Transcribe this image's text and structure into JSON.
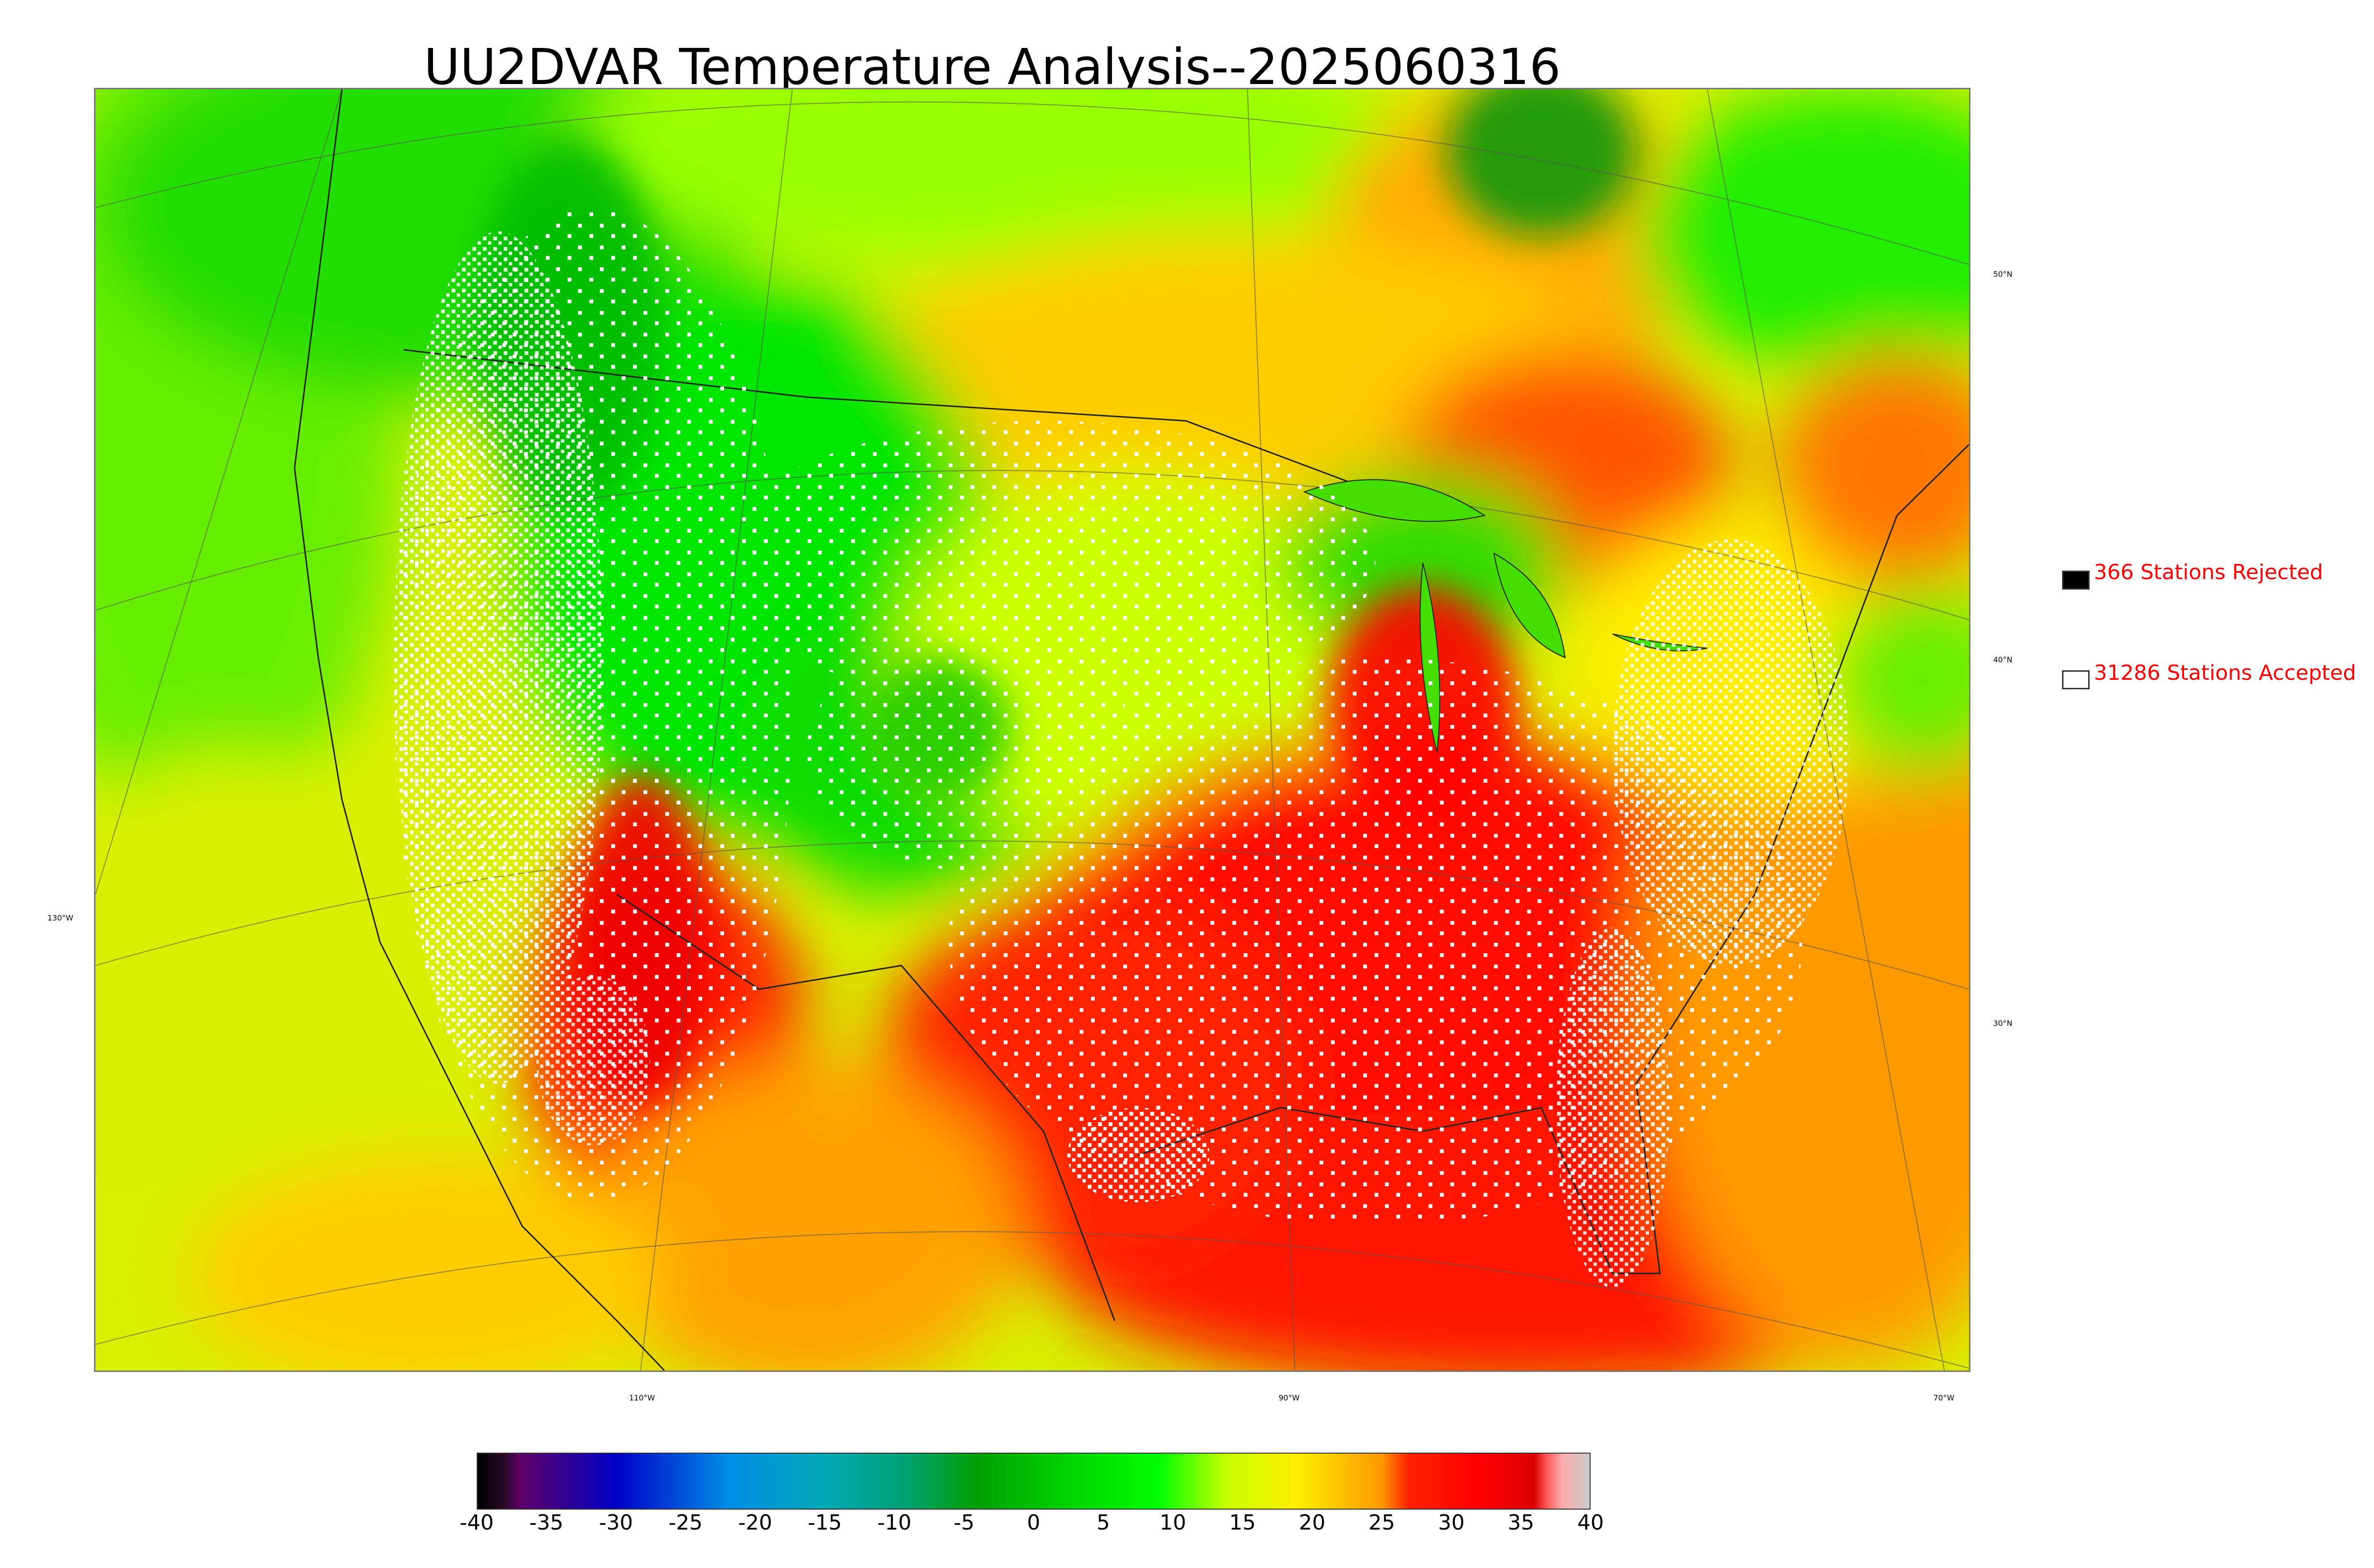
{
  "title": "UU2DVAR Temperature Analysis--2025060316",
  "map": {
    "grid_labels": {
      "lat_50": "50°N",
      "lat_40": "40°N",
      "lat_30": "30°N",
      "lon_130": "130°W",
      "lon_110": "110°W",
      "lon_90": "90°W",
      "lon_70": "70°W"
    }
  },
  "legend": {
    "rejected": {
      "label": "366 Stations Rejected",
      "color": "#000000"
    },
    "accepted": {
      "label": "31286 Stations Accepted",
      "color": "#ffffff"
    }
  },
  "colorbar": {
    "ticks": [
      "-40",
      "-35",
      "-30",
      "-25",
      "-20",
      "-15",
      "-10",
      "-5",
      "0",
      "5",
      "10",
      "15",
      "20",
      "25",
      "30",
      "35",
      "40"
    ],
    "stops": [
      {
        "value": -40,
        "color": "#000000"
      },
      {
        "value": -38,
        "color": "#2a0a2a"
      },
      {
        "value": -37,
        "color": "#5e0066"
      },
      {
        "value": -30,
        "color": "#0000c8"
      },
      {
        "value": -22,
        "color": "#008ce6"
      },
      {
        "value": -15,
        "color": "#00a8b4"
      },
      {
        "value": -9,
        "color": "#00a070"
      },
      {
        "value": -4,
        "color": "#00a000"
      },
      {
        "value": 2,
        "color": "#00d000"
      },
      {
        "value": 9,
        "color": "#00ff00"
      },
      {
        "value": 14,
        "color": "#ccff00"
      },
      {
        "value": 19,
        "color": "#ffee00"
      },
      {
        "value": 25,
        "color": "#ff9900"
      },
      {
        "value": 27,
        "color": "#ff2200"
      },
      {
        "value": 32,
        "color": "#ff0000"
      },
      {
        "value": 36,
        "color": "#dd0000"
      },
      {
        "value": 37,
        "color": "#ff6060"
      },
      {
        "value": 38,
        "color": "#ffaaaa"
      },
      {
        "value": 40,
        "color": "#cccccc"
      }
    ]
  }
}
